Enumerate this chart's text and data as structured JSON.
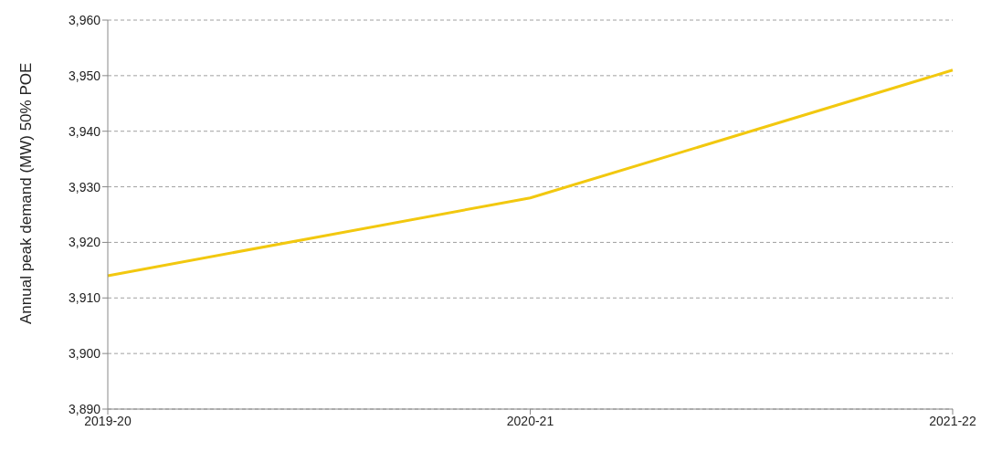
{
  "chart_data": {
    "type": "line",
    "ylabel": "Annual peak demand (MW) 50% POE",
    "categories": [
      "2019-20",
      "2020-21",
      "2021-22"
    ],
    "series": [
      {
        "color": "#f2c80f",
        "values": [
          3914,
          3928,
          3951
        ]
      }
    ],
    "ylim": [
      3890,
      3960
    ],
    "yticks": [
      {
        "value": 3890,
        "label": "3,890"
      },
      {
        "value": 3900,
        "label": "3,900"
      },
      {
        "value": 3910,
        "label": "3,910"
      },
      {
        "value": 3920,
        "label": "3,920"
      },
      {
        "value": 3930,
        "label": "3,930"
      },
      {
        "value": 3940,
        "label": "3,940"
      },
      {
        "value": 3950,
        "label": "3,950"
      },
      {
        "value": 3960,
        "label": "3,960"
      }
    ],
    "grid": "y",
    "legend": false,
    "marker": "none",
    "line_style": "solid"
  }
}
